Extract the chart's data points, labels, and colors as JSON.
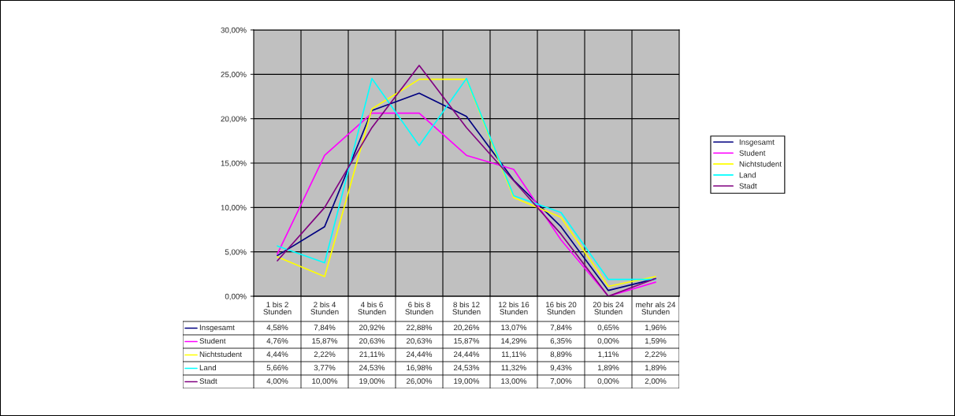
{
  "chart_data": {
    "type": "line",
    "categories": [
      "1 bis 2\nStunden",
      "2 bis 4\nStunden",
      "4 bis 6\nStunden",
      "6 bis 8\nStunden",
      "8 bis 12\nStunden",
      "12 bis 16\nStunden",
      "16 bis 20\nStunden",
      "20 bis 24\nStunden",
      "mehr als 24\nStunden"
    ],
    "series": [
      {
        "name": "Insgesamt",
        "color": "#000080",
        "values": [
          4.58,
          7.84,
          20.92,
          22.88,
          20.26,
          13.07,
          7.84,
          0.65,
          1.96
        ],
        "value_labels": [
          "4,58%",
          "7,84%",
          "20,92%",
          "22,88%",
          "20,26%",
          "13,07%",
          "7,84%",
          "0,65%",
          "1,96%"
        ]
      },
      {
        "name": "Student",
        "color": "#ff00ff",
        "values": [
          4.76,
          15.87,
          20.63,
          20.63,
          15.87,
          14.29,
          6.35,
          0.0,
          1.59
        ],
        "value_labels": [
          "4,76%",
          "15,87%",
          "20,63%",
          "20,63%",
          "15,87%",
          "14,29%",
          "6,35%",
          "0,00%",
          "1,59%"
        ]
      },
      {
        "name": "Nichtstudent",
        "color": "#ffff00",
        "values": [
          4.44,
          2.22,
          21.11,
          24.44,
          24.44,
          11.11,
          8.89,
          1.11,
          2.22
        ],
        "value_labels": [
          "4,44%",
          "2,22%",
          "21,11%",
          "24,44%",
          "24,44%",
          "11,11%",
          "8,89%",
          "1,11%",
          "2,22%"
        ]
      },
      {
        "name": "Land",
        "color": "#00ffff",
        "values": [
          5.66,
          3.77,
          24.53,
          16.98,
          24.53,
          11.32,
          9.43,
          1.89,
          1.89
        ],
        "value_labels": [
          "5,66%",
          "3,77%",
          "24,53%",
          "16,98%",
          "24,53%",
          "11,32%",
          "9,43%",
          "1,89%",
          "1,89%"
        ]
      },
      {
        "name": "Stadt",
        "color": "#800080",
        "values": [
          4.0,
          10.0,
          19.0,
          26.0,
          19.0,
          13.0,
          7.0,
          0.0,
          2.0
        ],
        "value_labels": [
          "4,00%",
          "10,00%",
          "19,00%",
          "26,00%",
          "19,00%",
          "13,00%",
          "7,00%",
          "0,00%",
          "2,00%"
        ]
      }
    ],
    "ylim": [
      0,
      30
    ],
    "yticks": [
      {
        "value": 0,
        "label": "0,00%"
      },
      {
        "value": 5,
        "label": "5,00%"
      },
      {
        "value": 10,
        "label": "10,00%"
      },
      {
        "value": 15,
        "label": "15,00%"
      },
      {
        "value": 20,
        "label": "20,00%"
      },
      {
        "value": 25,
        "label": "25,00%"
      },
      {
        "value": 30,
        "label": "30,00%"
      }
    ],
    "grid": true,
    "legend": "right",
    "marker": "none",
    "line_style": "solid"
  }
}
